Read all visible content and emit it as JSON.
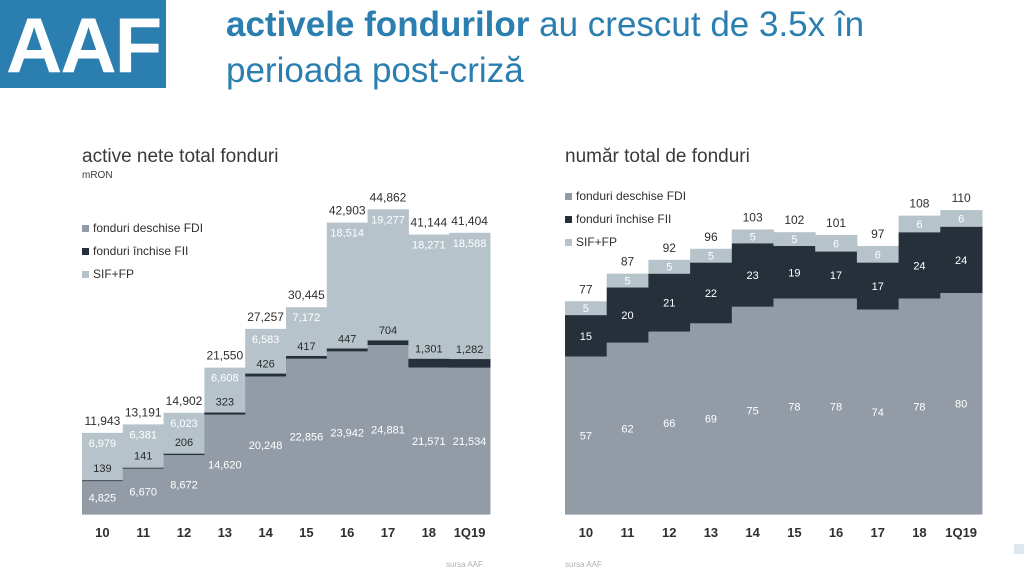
{
  "logo": {
    "text": "AAF"
  },
  "headline": {
    "bold": "activele fondurilor",
    "rest": " au crescut de 3.5x în perioada post-criză"
  },
  "colors": {
    "fdi": "#939ca6",
    "fii": "#25303b",
    "sif": "#b6c3ca",
    "brand": "#2b7fb0"
  },
  "source_note": "sursa AAF",
  "chart_data": [
    {
      "type": "bar",
      "stacked": true,
      "title": "active nete total fonduri",
      "unit": "mRON",
      "legend_position": "top-left",
      "categories": [
        "10",
        "11",
        "12",
        "13",
        "14",
        "15",
        "16",
        "17",
        "18",
        "1Q19"
      ],
      "series": [
        {
          "name": "fonduri deschise FDI",
          "color": "#939ca6",
          "values": [
            4825,
            6670,
            8672,
            14620,
            20248,
            22856,
            23942,
            24881,
            21571,
            21534
          ]
        },
        {
          "name": "fonduri închise FII",
          "color": "#25303b",
          "values": [
            139,
            141,
            206,
            323,
            426,
            417,
            447,
            704,
            1301,
            1282
          ]
        },
        {
          "name": "SIF+FP",
          "color": "#b6c3ca",
          "values": [
            6979,
            6381,
            6023,
            6608,
            6583,
            7172,
            18514,
            19277,
            18271,
            18588
          ]
        }
      ],
      "series_labels": [
        [
          "4,825",
          "6,670",
          "8,672",
          "14,620",
          "20,248",
          "22,856",
          "23,942",
          "24,881",
          "21,571",
          "21,534"
        ],
        [
          "139",
          "141",
          "206",
          "323",
          "426",
          "417",
          "447",
          "704",
          "1,301",
          "1,282"
        ],
        [
          "6,979",
          "6,381",
          "6,023",
          "6,608",
          "6,583",
          "7,172",
          "18,514",
          "19,277",
          "18,271",
          "18,588"
        ]
      ],
      "totals": [
        "11,943",
        "13,191",
        "14,902",
        "21,550",
        "27,257",
        "30,445",
        "42,903",
        "44,862",
        "41,144",
        "41,404"
      ],
      "ylim": [
        0,
        48000
      ]
    },
    {
      "type": "bar",
      "stacked": true,
      "title": "număr total de fonduri",
      "legend_position": "top-left",
      "categories": [
        "10",
        "11",
        "12",
        "13",
        "14",
        "15",
        "16",
        "17",
        "18",
        "1Q19"
      ],
      "series": [
        {
          "name": "fonduri deschise FDI",
          "color": "#939ca6",
          "values": [
            57,
            62,
            66,
            69,
            75,
            78,
            78,
            74,
            78,
            80
          ]
        },
        {
          "name": "fonduri închise FII",
          "color": "#25303b",
          "values": [
            15,
            20,
            21,
            22,
            23,
            19,
            17,
            17,
            24,
            24
          ]
        },
        {
          "name": "SIF+FP",
          "color": "#b6c3ca",
          "values": [
            5,
            5,
            5,
            5,
            5,
            5,
            6,
            6,
            6,
            6
          ]
        }
      ],
      "series_labels": [
        [
          "57",
          "62",
          "66",
          "69",
          "75",
          "78",
          "78",
          "74",
          "78",
          "80"
        ],
        [
          "15",
          "20",
          "21",
          "22",
          "23",
          "19",
          "17",
          "17",
          "24",
          "24"
        ],
        [
          "5",
          "5",
          "5",
          "5",
          "5",
          "5",
          "6",
          "6",
          "6",
          "6"
        ]
      ],
      "totals": [
        "77",
        "87",
        "92",
        "96",
        "103",
        "102",
        "101",
        "97",
        "108",
        "110"
      ],
      "ylim": [
        0,
        118
      ]
    }
  ]
}
